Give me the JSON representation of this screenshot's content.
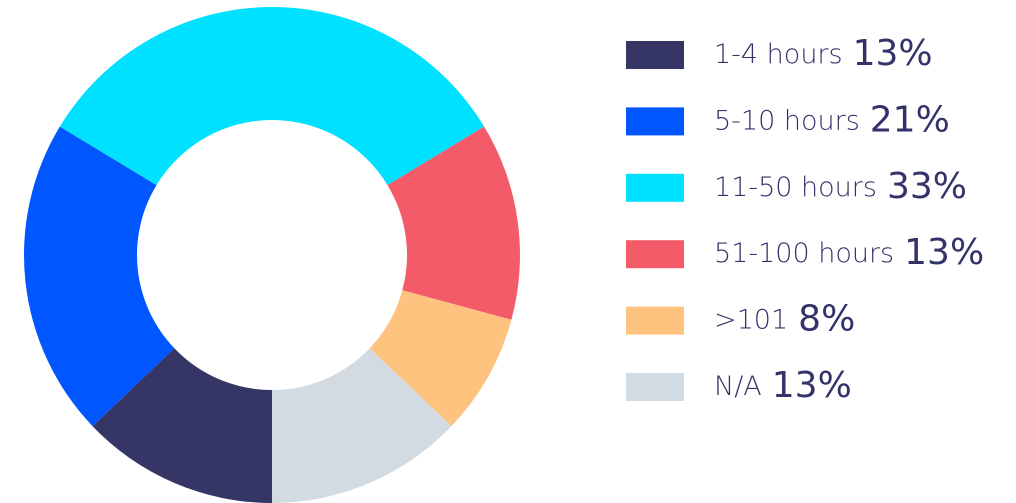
{
  "chart_data": {
    "type": "donut",
    "categories": [
      "1-4 hours",
      "5-10 hours",
      "11-50 hours",
      "51-100 hours",
      ">101",
      "N/A"
    ],
    "values": [
      13,
      21,
      33,
      13,
      8,
      13
    ],
    "value_labels": [
      "13%",
      "21%",
      "33%",
      "13%",
      "8%",
      "13%"
    ],
    "colors": [
      "#353566",
      "#0057ff",
      "#00e1ff",
      "#f45b69",
      "#ffc380",
      "#d3dbe2"
    ],
    "legend": "right"
  }
}
